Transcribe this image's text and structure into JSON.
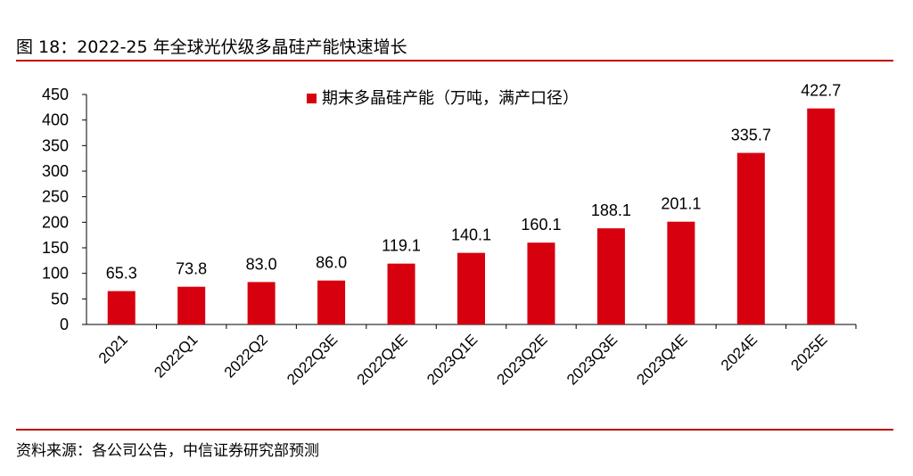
{
  "figure_title": "图 18：2022-25 年全球光伏级多晶硅产能快速增长",
  "source_note": "资料来源：各公司公告，中信证券研究部预测",
  "chart_data": {
    "type": "bar",
    "categories": [
      "2021",
      "2022Q1",
      "2022Q2",
      "2022Q3E",
      "2022Q4E",
      "2023Q1E",
      "2023Q2E",
      "2023Q3E",
      "2023Q4E",
      "2024E",
      "2025E"
    ],
    "series": [
      {
        "name": "期末多晶硅产能（万吨，满产口径）",
        "values": [
          65.3,
          73.8,
          83.0,
          86.0,
          119.1,
          140.1,
          160.1,
          188.1,
          201.1,
          335.7,
          422.7
        ],
        "labels": [
          "65.3",
          "73.8",
          "83.0",
          "86.0",
          "119.1",
          "140.1",
          "160.1",
          "188.1",
          "201.1",
          "335.7",
          "422.7"
        ],
        "color": "#d7000f"
      }
    ],
    "yticks": [
      "0",
      "50",
      "100",
      "150",
      "200",
      "250",
      "300",
      "350",
      "400",
      "450"
    ],
    "ylim": [
      0,
      450
    ],
    "grid": false,
    "legend_position": "top-center"
  }
}
